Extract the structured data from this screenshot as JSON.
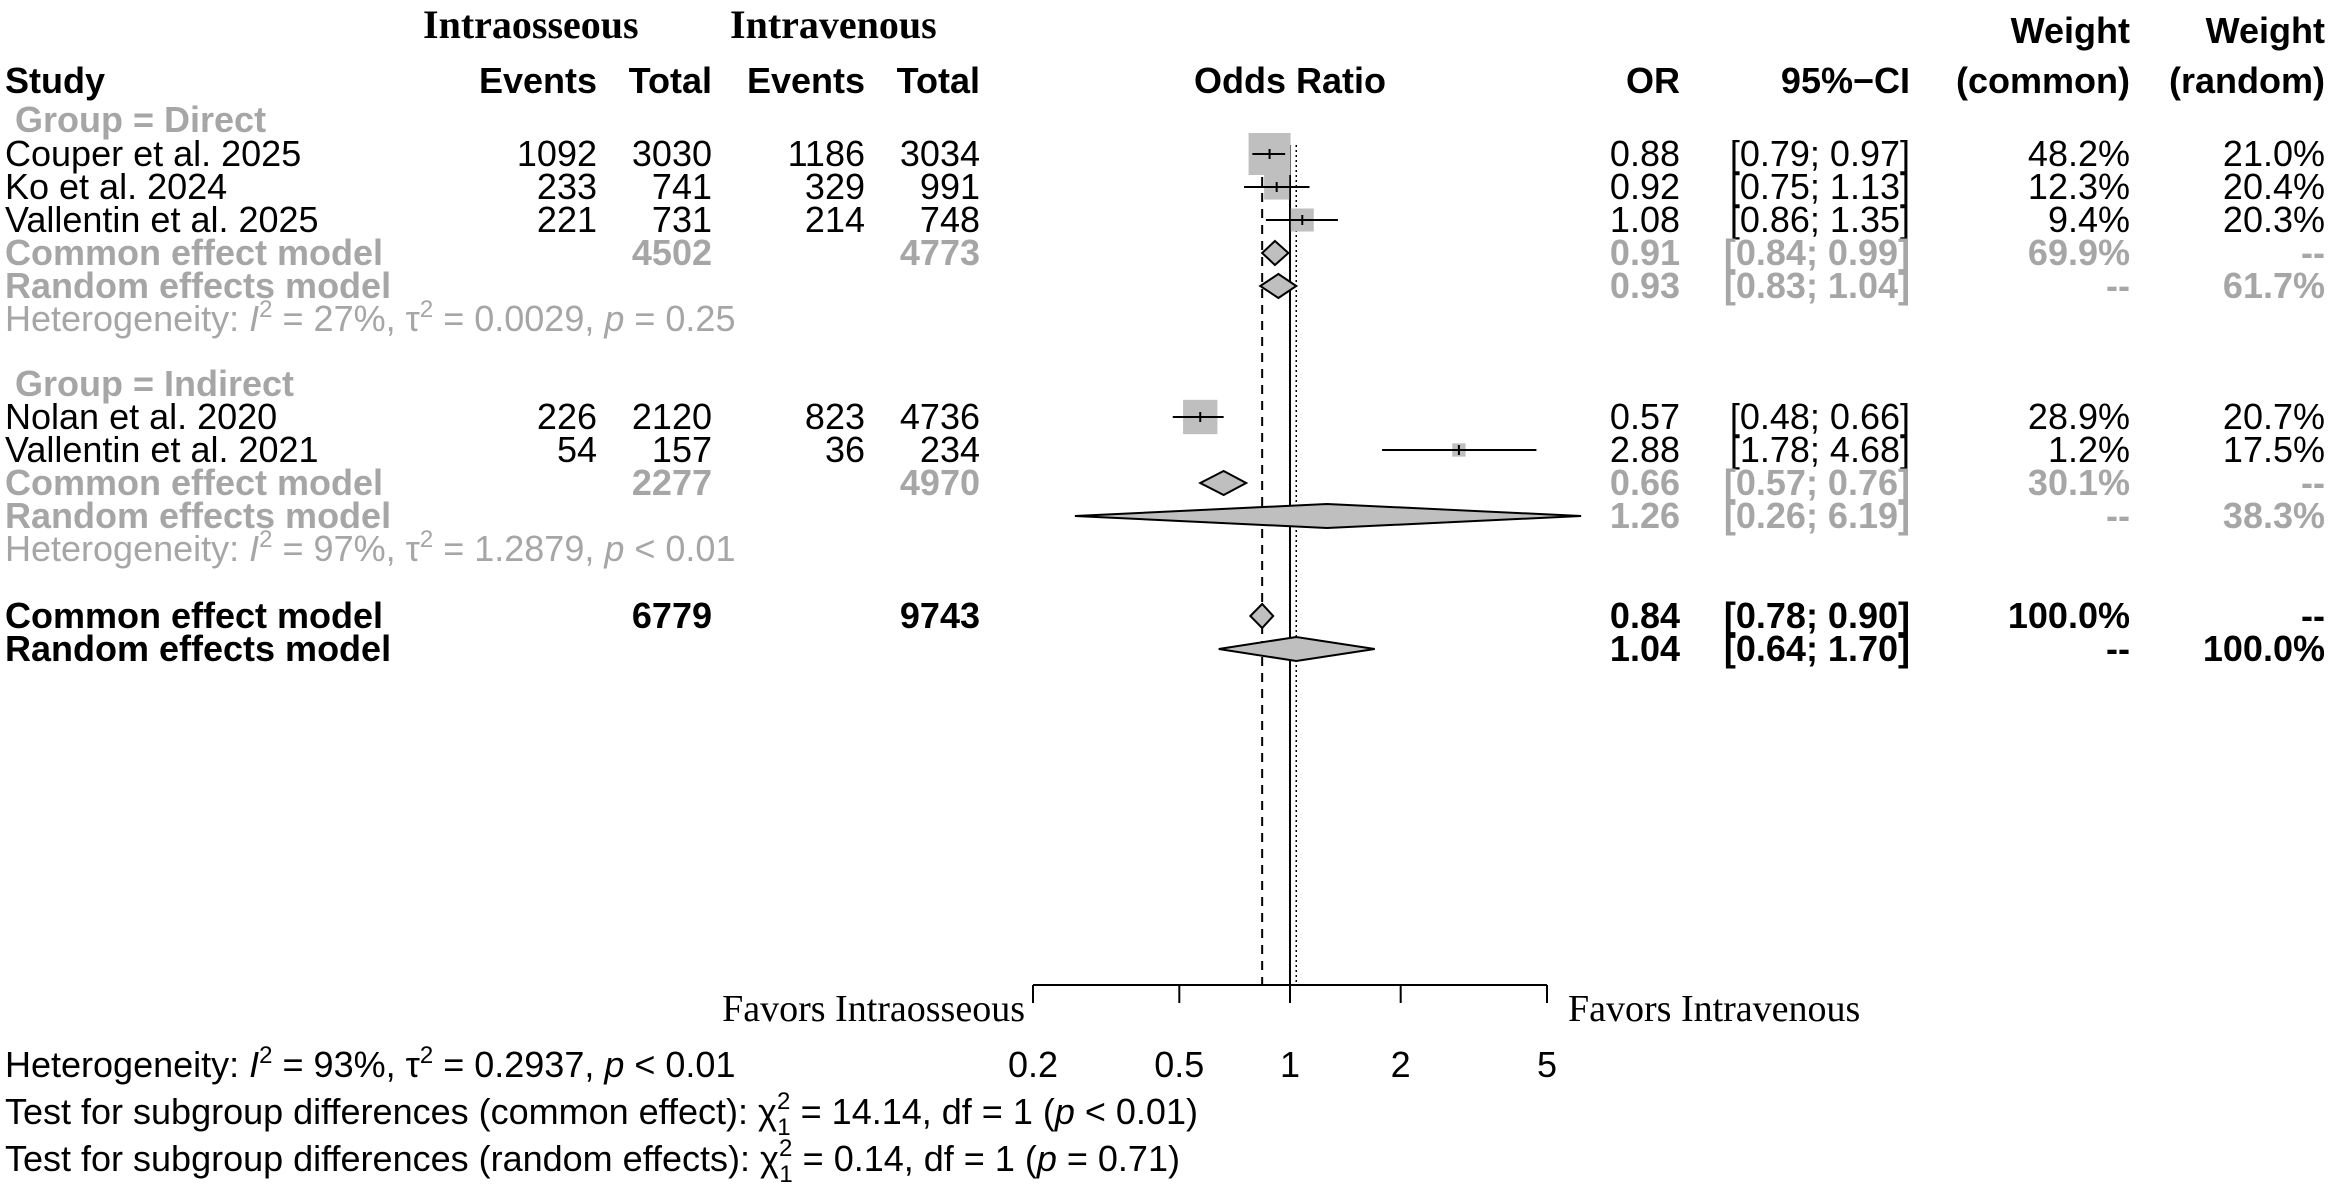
{
  "headers": {
    "group_intraosseous": "Intraosseous",
    "group_intravenous": "Intravenous",
    "study": "Study",
    "events": "Events",
    "total": "Total",
    "odds_ratio": "Odds Ratio",
    "or": "OR",
    "ci": "95%−CI",
    "weight": "Weight",
    "weight_common": "(common)",
    "weight_random": "(random)"
  },
  "subgroups": [
    {
      "label": "Group  = Direct",
      "studies": [
        {
          "name": "Couper et al. 2025",
          "io_events": "1092",
          "io_total": "3030",
          "iv_events": "1186",
          "iv_total": "3034",
          "or_text": "0.88",
          "ci_text": "[0.79; 0.97]",
          "w_common": "48.2%",
          "w_random": "21.0%",
          "or": 0.88,
          "lo": 0.79,
          "hi": 0.97,
          "w": 48.2
        },
        {
          "name": "Ko et al. 2024",
          "io_events": "233",
          "io_total": "741",
          "iv_events": "329",
          "iv_total": "991",
          "or_text": "0.92",
          "ci_text": "[0.75; 1.13]",
          "w_common": "12.3%",
          "w_random": "20.4%",
          "or": 0.92,
          "lo": 0.75,
          "hi": 1.13,
          "w": 12.3
        },
        {
          "name": "Vallentin et al. 2025",
          "io_events": "221",
          "io_total": "731",
          "iv_events": "214",
          "iv_total": "748",
          "or_text": "1.08",
          "ci_text": "[0.86; 1.35]",
          "w_common": "9.4%",
          "w_random": "20.3%",
          "or": 1.08,
          "lo": 0.86,
          "hi": 1.35,
          "w": 9.4
        }
      ],
      "common": {
        "label": "Common effect model",
        "io_total": "4502",
        "iv_total": "4773",
        "or_text": "0.91",
        "ci_text": "[0.84; 0.99]",
        "w_common": "69.9%",
        "w_random": "--",
        "or": 0.91,
        "lo": 0.84,
        "hi": 0.99
      },
      "random": {
        "label": "Random effects model",
        "or_text": "0.93",
        "ci_text": "[0.83; 1.04]",
        "w_common": "--",
        "w_random": "61.7%",
        "or": 0.93,
        "lo": 0.83,
        "hi": 1.04
      },
      "het": {
        "prefix": "Heterogeneity: ",
        "i2": "27%",
        "tau2": "0.0029",
        "p_op": " = ",
        "p": "0.25"
      }
    },
    {
      "label": "Group  = Indirect",
      "studies": [
        {
          "name": "Nolan et al. 2020",
          "io_events": "226",
          "io_total": "2120",
          "iv_events": "823",
          "iv_total": "4736",
          "or_text": "0.57",
          "ci_text": "[0.48; 0.66]",
          "w_common": "28.9%",
          "w_random": "20.7%",
          "or": 0.57,
          "lo": 0.48,
          "hi": 0.66,
          "w": 28.9
        },
        {
          "name": "Vallentin et al. 2021",
          "io_events": "54",
          "io_total": "157",
          "iv_events": "36",
          "iv_total": "234",
          "or_text": "2.88",
          "ci_text": "[1.78; 4.68]",
          "w_common": "1.2%",
          "w_random": "17.5%",
          "or": 2.88,
          "lo": 1.78,
          "hi": 4.68,
          "w": 1.2
        }
      ],
      "common": {
        "label": "Common effect model",
        "io_total": "2277",
        "iv_total": "4970",
        "or_text": "0.66",
        "ci_text": "[0.57; 0.76]",
        "w_common": "30.1%",
        "w_random": "--",
        "or": 0.66,
        "lo": 0.57,
        "hi": 0.76
      },
      "random": {
        "label": "Random effects model",
        "or_text": "1.26",
        "ci_text": "[0.26; 6.19]",
        "w_common": "--",
        "w_random": "38.3%",
        "or": 1.26,
        "lo": 0.26,
        "hi": 6.19
      },
      "het": {
        "prefix": "Heterogeneity: ",
        "i2": "97%",
        "tau2": "1.2879",
        "p_op": " < ",
        "p": "0.01"
      }
    }
  ],
  "overall": {
    "common": {
      "label": "Common effect model",
      "io_total": "6779",
      "iv_total": "9743",
      "or_text": "0.84",
      "ci_text": "[0.78; 0.90]",
      "w_common": "100.0%",
      "w_random": "--",
      "or": 0.84,
      "lo": 0.78,
      "hi": 0.9
    },
    "random": {
      "label": "Random effects model",
      "or_text": "1.04",
      "ci_text": "[0.64; 1.70]",
      "w_common": "--",
      "w_random": "100.0%",
      "or": 1.04,
      "lo": 0.64,
      "hi": 1.7
    },
    "het": {
      "prefix": "Heterogeneity: ",
      "i2": "93%",
      "tau2": "0.2937",
      "p_op": " < ",
      "p": "0.01"
    }
  },
  "tests": [
    {
      "prefix": "Test for subgroup differences (common effect): ",
      "chi2": "14.14",
      "df_text": ", df = 1 (",
      "p_op": " < ",
      "p": "0.01",
      "suffix": ")"
    },
    {
      "prefix": "Test for subgroup differences (random effects): ",
      "chi2": "0.14",
      "df_text": ", df = 1 (",
      "p_op": " = ",
      "p": "0.71",
      "suffix": ")"
    }
  ],
  "labels": {
    "favors_left": "Favors Intraosseous",
    "favors_right": "Favors Intravenous"
  },
  "chart_data": {
    "type": "forest",
    "scale": "log",
    "xlim": [
      0.2,
      5
    ],
    "ticks": [
      0.2,
      0.5,
      1,
      2,
      5
    ],
    "tick_labels": [
      "0.2",
      "0.5",
      "1",
      "2",
      "5"
    ],
    "reference_line": 1,
    "common_effect_line": 0.84,
    "random_effect_line": 1.04
  },
  "colors": {
    "text": "#000000",
    "subgroup_text": "#a6a6a6",
    "box": "#bfbfbf",
    "diamond_fill": "#bfbfbf"
  }
}
